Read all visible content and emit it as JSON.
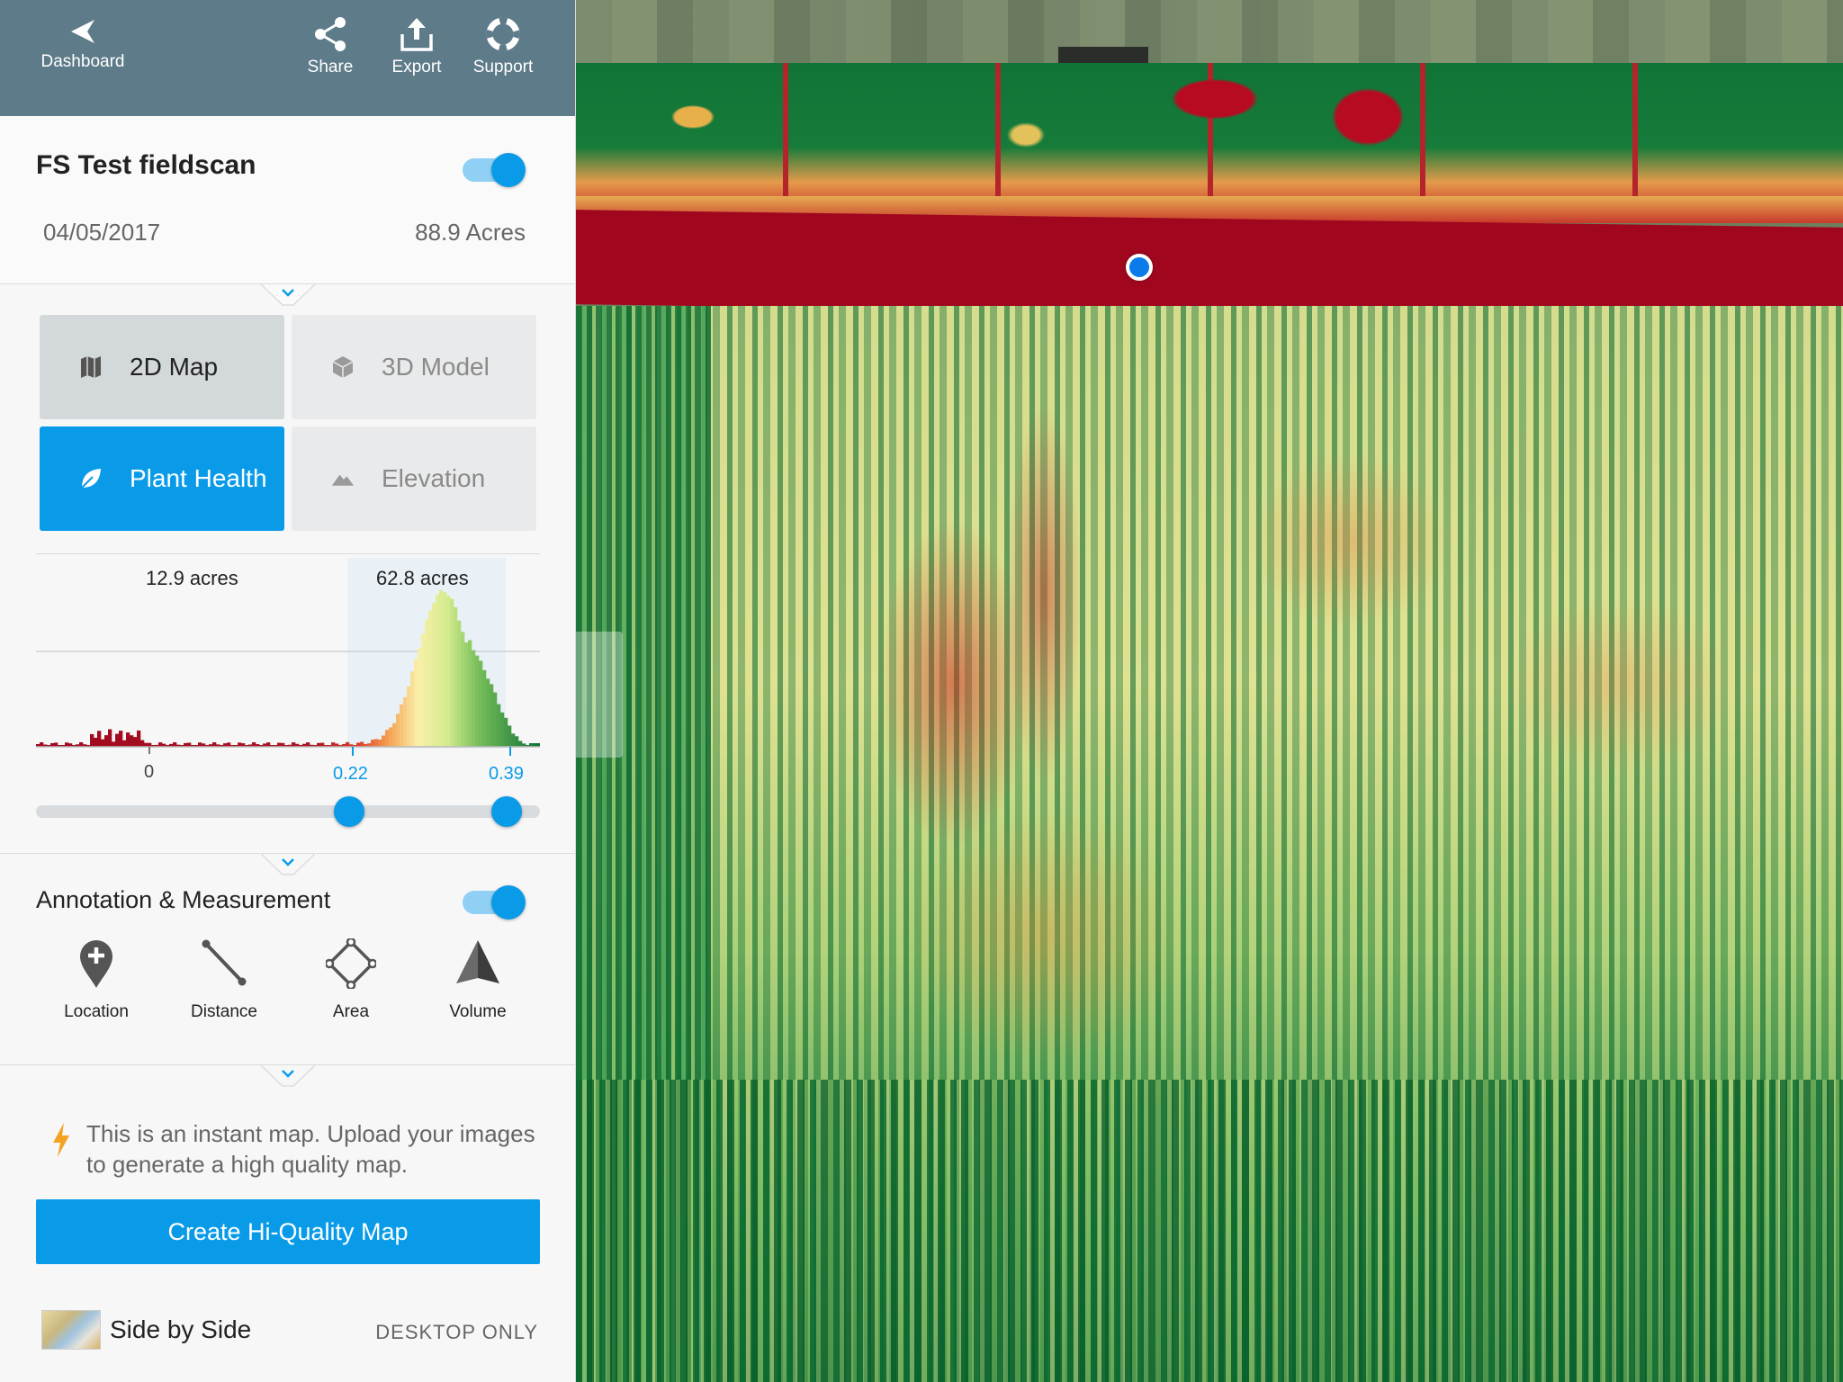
{
  "topbar": {
    "dashboard_label": "Dashboard",
    "share_label": "Share",
    "export_label": "Export",
    "support_label": "Support"
  },
  "scan": {
    "title": "FS Test fieldscan",
    "date": "04/05/2017",
    "acres": "88.9 Acres",
    "visible": true
  },
  "views": {
    "map2d_label": "2D Map",
    "model3d_label": "3D Model",
    "plant_health_label": "Plant Health",
    "elevation_label": "Elevation",
    "selected": [
      "2D Map",
      "Plant Health"
    ]
  },
  "histogram": {
    "left_acres": "12.9 acres",
    "right_acres": "62.8 acres",
    "tick_min": "0",
    "tick_low": "0.22",
    "tick_high": "0.39",
    "range_low": 0.22,
    "range_high": 0.39
  },
  "annotation": {
    "title": "Annotation & Measurement",
    "enabled": true,
    "tools": {
      "location": "Location",
      "distance": "Distance",
      "area": "Area",
      "volume": "Volume"
    }
  },
  "instant_note": "This is an instant map. Upload your images to generate a high quality map.",
  "create_button": "Create Hi-Quality Map",
  "side_by_side": {
    "label": "Side by Side",
    "note": "DESKTOP ONLY"
  },
  "colors": {
    "accent": "#0a9be8",
    "topbar": "#5e7b89",
    "ndvi_low": "#a0071f",
    "ndvi_high": "#0f7436"
  }
}
